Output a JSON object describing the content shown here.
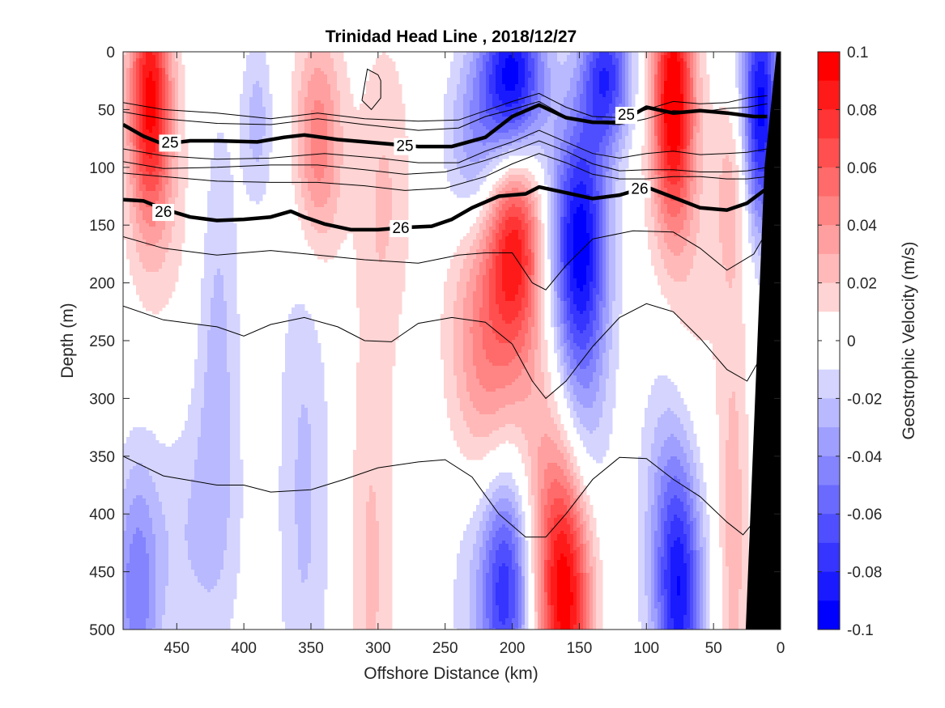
{
  "chart_data": {
    "type": "heatmap",
    "subtype": "filled contour section with density contours",
    "title": "Trinidad Head Line , 2018/12/27",
    "xlabel": "Offshore Distance (km)",
    "ylabel": "Depth (m)",
    "xlim": [
      490,
      0
    ],
    "x_reversed": true,
    "ylim": [
      0,
      500
    ],
    "y_reversed": true,
    "x_ticks": [
      "450",
      "400",
      "350",
      "300",
      "250",
      "200",
      "150",
      "100",
      "50",
      "0"
    ],
    "x_tick_values": [
      450,
      400,
      350,
      300,
      250,
      200,
      150,
      100,
      50,
      0
    ],
    "y_ticks": [
      "0",
      "50",
      "100",
      "150",
      "200",
      "250",
      "300",
      "350",
      "400",
      "450",
      "500"
    ],
    "y_tick_values": [
      0,
      50,
      100,
      150,
      200,
      250,
      300,
      350,
      400,
      450,
      500
    ],
    "colorbar": {
      "label": "Geostrophic Velocity (m/s)",
      "range": [
        -0.1,
        0.1
      ],
      "ticks": [
        "0.1",
        "0.08",
        "0.06",
        "0.04",
        "0.02",
        "0",
        "-0.02",
        "-0.04",
        "-0.06",
        "-0.08",
        "-0.1"
      ],
      "tick_values": [
        0.1,
        0.08,
        0.06,
        0.04,
        0.02,
        0,
        -0.02,
        -0.04,
        -0.06,
        -0.08,
        -0.1
      ],
      "levels": [
        -0.1,
        -0.09,
        -0.08,
        -0.07,
        -0.06,
        -0.05,
        -0.04,
        -0.03,
        -0.02,
        -0.01,
        0.01,
        0.02,
        0.03,
        0.04,
        0.05,
        0.06,
        0.07,
        0.08,
        0.09,
        0.1
      ],
      "colormap": "blue-white-red",
      "neg_color": "#0000ff",
      "pos_color": "#ff0000",
      "zero_color": "#ffffff"
    },
    "velocity_cores": [
      {
        "x": 470,
        "z": 40,
        "v": 0.09,
        "sx": 11,
        "sz": 75
      },
      {
        "x": 455,
        "z": 140,
        "v": 0.012,
        "sx": 25,
        "sz": 90
      },
      {
        "x": 345,
        "z": 80,
        "v": 0.05,
        "sx": 13,
        "sz": 70
      },
      {
        "x": 390,
        "z": 60,
        "v": -0.025,
        "sx": 8,
        "sz": 50
      },
      {
        "x": 295,
        "z": 120,
        "v": 0.02,
        "sx": 15,
        "sz": 100
      },
      {
        "x": 420,
        "z": 240,
        "v": -0.025,
        "sx": 12,
        "sz": 150
      },
      {
        "x": 355,
        "z": 380,
        "v": -0.022,
        "sx": 14,
        "sz": 180
      },
      {
        "x": 480,
        "z": 470,
        "v": -0.045,
        "sx": 12,
        "sz": 80
      },
      {
        "x": 440,
        "z": 420,
        "v": -0.018,
        "sx": 25,
        "sz": 80
      },
      {
        "x": 305,
        "z": 450,
        "v": 0.022,
        "sx": 12,
        "sz": 150
      },
      {
        "x": 200,
        "z": 25,
        "v": -0.1,
        "sx": 17,
        "sz": 55
      },
      {
        "x": 230,
        "z": 85,
        "v": -0.035,
        "sx": 15,
        "sz": 55
      },
      {
        "x": 198,
        "z": 165,
        "v": 0.075,
        "sx": 14,
        "sz": 65
      },
      {
        "x": 225,
        "z": 260,
        "v": 0.04,
        "sx": 17,
        "sz": 100
      },
      {
        "x": 195,
        "z": 300,
        "v": 0.02,
        "sx": 25,
        "sz": 110
      },
      {
        "x": 150,
        "z": 160,
        "v": -0.09,
        "sx": 15,
        "sz": 75
      },
      {
        "x": 150,
        "z": 300,
        "v": -0.035,
        "sx": 15,
        "sz": 90
      },
      {
        "x": 130,
        "z": 20,
        "v": -0.075,
        "sx": 13,
        "sz": 45
      },
      {
        "x": 205,
        "z": 460,
        "v": -0.08,
        "sx": 13,
        "sz": 75
      },
      {
        "x": 230,
        "z": 420,
        "v": -0.02,
        "sx": 15,
        "sz": 110
      },
      {
        "x": 160,
        "z": 480,
        "v": 0.08,
        "sx": 14,
        "sz": 80
      },
      {
        "x": 165,
        "z": 400,
        "v": 0.03,
        "sx": 15,
        "sz": 90
      },
      {
        "x": 80,
        "z": 40,
        "v": 0.1,
        "sx": 11,
        "sz": 75
      },
      {
        "x": 75,
        "z": 220,
        "v": 0.02,
        "sx": 20,
        "sz": 120
      },
      {
        "x": 75,
        "z": 470,
        "v": -0.075,
        "sx": 12,
        "sz": 80
      },
      {
        "x": 85,
        "z": 370,
        "v": -0.03,
        "sx": 15,
        "sz": 120
      },
      {
        "x": 15,
        "z": 50,
        "v": -0.095,
        "sx": 10,
        "sz": 75
      },
      {
        "x": 35,
        "z": 120,
        "v": 0.025,
        "sx": 10,
        "sz": 60
      },
      {
        "x": 35,
        "z": 420,
        "v": 0.025,
        "sx": 8,
        "sz": 150
      }
    ],
    "density_contours_thin": [
      {
        "points": [
          [
            490,
            44
          ],
          [
            460,
            50
          ],
          [
            420,
            53
          ],
          [
            380,
            58
          ],
          [
            345,
            53
          ],
          [
            310,
            58
          ],
          [
            270,
            60
          ],
          [
            240,
            59
          ],
          [
            220,
            51
          ],
          [
            200,
            43
          ],
          [
            180,
            36
          ],
          [
            160,
            48
          ],
          [
            140,
            56
          ],
          [
            120,
            57
          ],
          [
            100,
            50
          ],
          [
            80,
            43
          ],
          [
            60,
            45
          ],
          [
            40,
            44
          ],
          [
            25,
            40
          ],
          [
            10,
            38
          ]
        ]
      },
      {
        "points": [
          [
            490,
            52
          ],
          [
            460,
            58
          ],
          [
            420,
            62
          ],
          [
            380,
            63
          ],
          [
            345,
            58
          ],
          [
            310,
            63
          ],
          [
            270,
            68
          ],
          [
            240,
            66
          ],
          [
            220,
            56
          ],
          [
            200,
            50
          ],
          [
            180,
            43
          ],
          [
            160,
            56
          ],
          [
            140,
            62
          ],
          [
            120,
            63
          ],
          [
            100,
            58
          ],
          [
            80,
            51
          ],
          [
            60,
            52
          ],
          [
            40,
            49
          ],
          [
            25,
            48
          ],
          [
            10,
            45
          ]
        ]
      },
      {
        "points": [
          [
            490,
            84
          ],
          [
            460,
            90
          ],
          [
            420,
            93
          ],
          [
            380,
            92
          ],
          [
            340,
            88
          ],
          [
            300,
            92
          ],
          [
            270,
            96
          ],
          [
            240,
            96
          ],
          [
            220,
            86
          ],
          [
            200,
            78
          ],
          [
            180,
            68
          ],
          [
            160,
            78
          ],
          [
            140,
            88
          ],
          [
            120,
            92
          ],
          [
            100,
            88
          ],
          [
            80,
            86
          ],
          [
            60,
            89
          ],
          [
            40,
            88
          ],
          [
            25,
            87
          ],
          [
            10,
            84
          ]
        ]
      },
      {
        "points": [
          [
            490,
            95
          ],
          [
            460,
            101
          ],
          [
            420,
            100
          ],
          [
            380,
            98
          ],
          [
            345,
            98
          ],
          [
            310,
            102
          ],
          [
            280,
            106
          ],
          [
            250,
            104
          ],
          [
            220,
            94
          ],
          [
            200,
            86
          ],
          [
            180,
            77
          ],
          [
            160,
            86
          ],
          [
            140,
            97
          ],
          [
            120,
            103
          ],
          [
            100,
            102
          ],
          [
            80,
            102
          ],
          [
            60,
            104
          ],
          [
            40,
            104
          ],
          [
            25,
            103
          ],
          [
            10,
            100
          ]
        ]
      },
      {
        "points": [
          [
            490,
            105
          ],
          [
            460,
            108
          ],
          [
            420,
            112
          ],
          [
            380,
            113
          ],
          [
            345,
            113
          ],
          [
            310,
            116
          ],
          [
            280,
            120
          ],
          [
            250,
            118
          ],
          [
            220,
            108
          ],
          [
            200,
            97
          ],
          [
            180,
            88
          ],
          [
            160,
            96
          ],
          [
            140,
            106
          ],
          [
            120,
            110
          ],
          [
            100,
            110
          ],
          [
            80,
            108
          ],
          [
            60,
            108
          ],
          [
            40,
            110
          ],
          [
            25,
            110
          ],
          [
            10,
            108
          ]
        ]
      },
      {
        "points": [
          [
            490,
            160
          ],
          [
            460,
            170
          ],
          [
            420,
            176
          ],
          [
            380,
            172
          ],
          [
            345,
            176
          ],
          [
            310,
            180
          ],
          [
            270,
            183
          ],
          [
            240,
            176
          ],
          [
            220,
            174
          ],
          [
            200,
            174
          ],
          [
            185,
            200
          ],
          [
            175,
            206
          ],
          [
            160,
            185
          ],
          [
            140,
            162
          ],
          [
            110,
            155
          ],
          [
            80,
            156
          ],
          [
            60,
            170
          ],
          [
            40,
            189
          ],
          [
            20,
            175
          ],
          [
            10,
            155
          ]
        ]
      },
      {
        "points": [
          [
            490,
            220
          ],
          [
            460,
            232
          ],
          [
            420,
            238
          ],
          [
            400,
            246
          ],
          [
            380,
            236
          ],
          [
            355,
            230
          ],
          [
            330,
            238
          ],
          [
            310,
            250
          ],
          [
            290,
            251
          ],
          [
            270,
            235
          ],
          [
            245,
            230
          ],
          [
            220,
            234
          ],
          [
            200,
            253
          ],
          [
            185,
            285
          ],
          [
            175,
            300
          ],
          [
            160,
            285
          ],
          [
            140,
            255
          ],
          [
            120,
            230
          ],
          [
            100,
            218
          ],
          [
            80,
            225
          ],
          [
            60,
            248
          ],
          [
            40,
            275
          ],
          [
            25,
            285
          ],
          [
            10,
            255
          ]
        ]
      },
      {
        "points": [
          [
            490,
            350
          ],
          [
            460,
            367
          ],
          [
            420,
            375
          ],
          [
            400,
            375
          ],
          [
            380,
            381
          ],
          [
            350,
            379
          ],
          [
            325,
            370
          ],
          [
            300,
            360
          ],
          [
            270,
            355
          ],
          [
            250,
            353
          ],
          [
            230,
            368
          ],
          [
            210,
            400
          ],
          [
            190,
            420
          ],
          [
            175,
            420
          ],
          [
            160,
            400
          ],
          [
            140,
            370
          ],
          [
            120,
            351
          ],
          [
            100,
            352
          ],
          [
            80,
            370
          ],
          [
            60,
            385
          ],
          [
            40,
            407
          ],
          [
            28,
            418
          ],
          [
            15,
            400
          ],
          [
            5,
            380
          ]
        ]
      },
      {
        "points": [
          [
            300,
            20
          ],
          [
            308,
            15
          ],
          [
            312,
            42
          ],
          [
            305,
            50
          ],
          [
            298,
            40
          ],
          [
            298,
            25
          ],
          [
            300,
            20
          ]
        ]
      }
    ],
    "density_contours_labeled": [
      {
        "label": "25",
        "points": [
          [
            490,
            63
          ],
          [
            475,
            73
          ],
          [
            460,
            80
          ],
          [
            440,
            77
          ],
          [
            420,
            77
          ],
          [
            390,
            78
          ],
          [
            370,
            74
          ],
          [
            355,
            72
          ],
          [
            330,
            76
          ],
          [
            300,
            79
          ],
          [
            270,
            82
          ],
          [
            245,
            82
          ],
          [
            220,
            74
          ],
          [
            200,
            56
          ],
          [
            180,
            46
          ],
          [
            160,
            57
          ],
          [
            140,
            61
          ],
          [
            120,
            61
          ],
          [
            100,
            48
          ],
          [
            80,
            53
          ],
          [
            60,
            51
          ],
          [
            40,
            53
          ],
          [
            20,
            56
          ],
          [
            10,
            56
          ]
        ],
        "label_positions": [
          [
            455,
            78
          ],
          [
            280,
            81
          ],
          [
            115,
            54
          ]
        ]
      },
      {
        "label": "26",
        "points": [
          [
            490,
            128
          ],
          [
            475,
            129
          ],
          [
            460,
            136
          ],
          [
            440,
            143
          ],
          [
            420,
            146
          ],
          [
            400,
            145
          ],
          [
            380,
            143
          ],
          [
            365,
            138
          ],
          [
            355,
            143
          ],
          [
            340,
            149
          ],
          [
            320,
            154
          ],
          [
            300,
            154
          ],
          [
            280,
            152
          ],
          [
            260,
            151
          ],
          [
            245,
            145
          ],
          [
            230,
            135
          ],
          [
            210,
            125
          ],
          [
            190,
            123
          ],
          [
            180,
            117
          ],
          [
            160,
            122
          ],
          [
            140,
            127
          ],
          [
            120,
            124
          ],
          [
            100,
            117
          ],
          [
            80,
            126
          ],
          [
            60,
            135
          ],
          [
            40,
            137
          ],
          [
            25,
            131
          ],
          [
            10,
            118
          ]
        ],
        "label_positions": [
          [
            460,
            138
          ],
          [
            283,
            152
          ],
          [
            105,
            118
          ]
        ]
      }
    ],
    "bathymetry": {
      "color": "#000000",
      "points": [
        [
          0,
          0
        ],
        [
          0,
          500
        ],
        [
          26,
          500
        ],
        [
          12,
          100
        ],
        [
          3,
          0
        ]
      ]
    }
  }
}
